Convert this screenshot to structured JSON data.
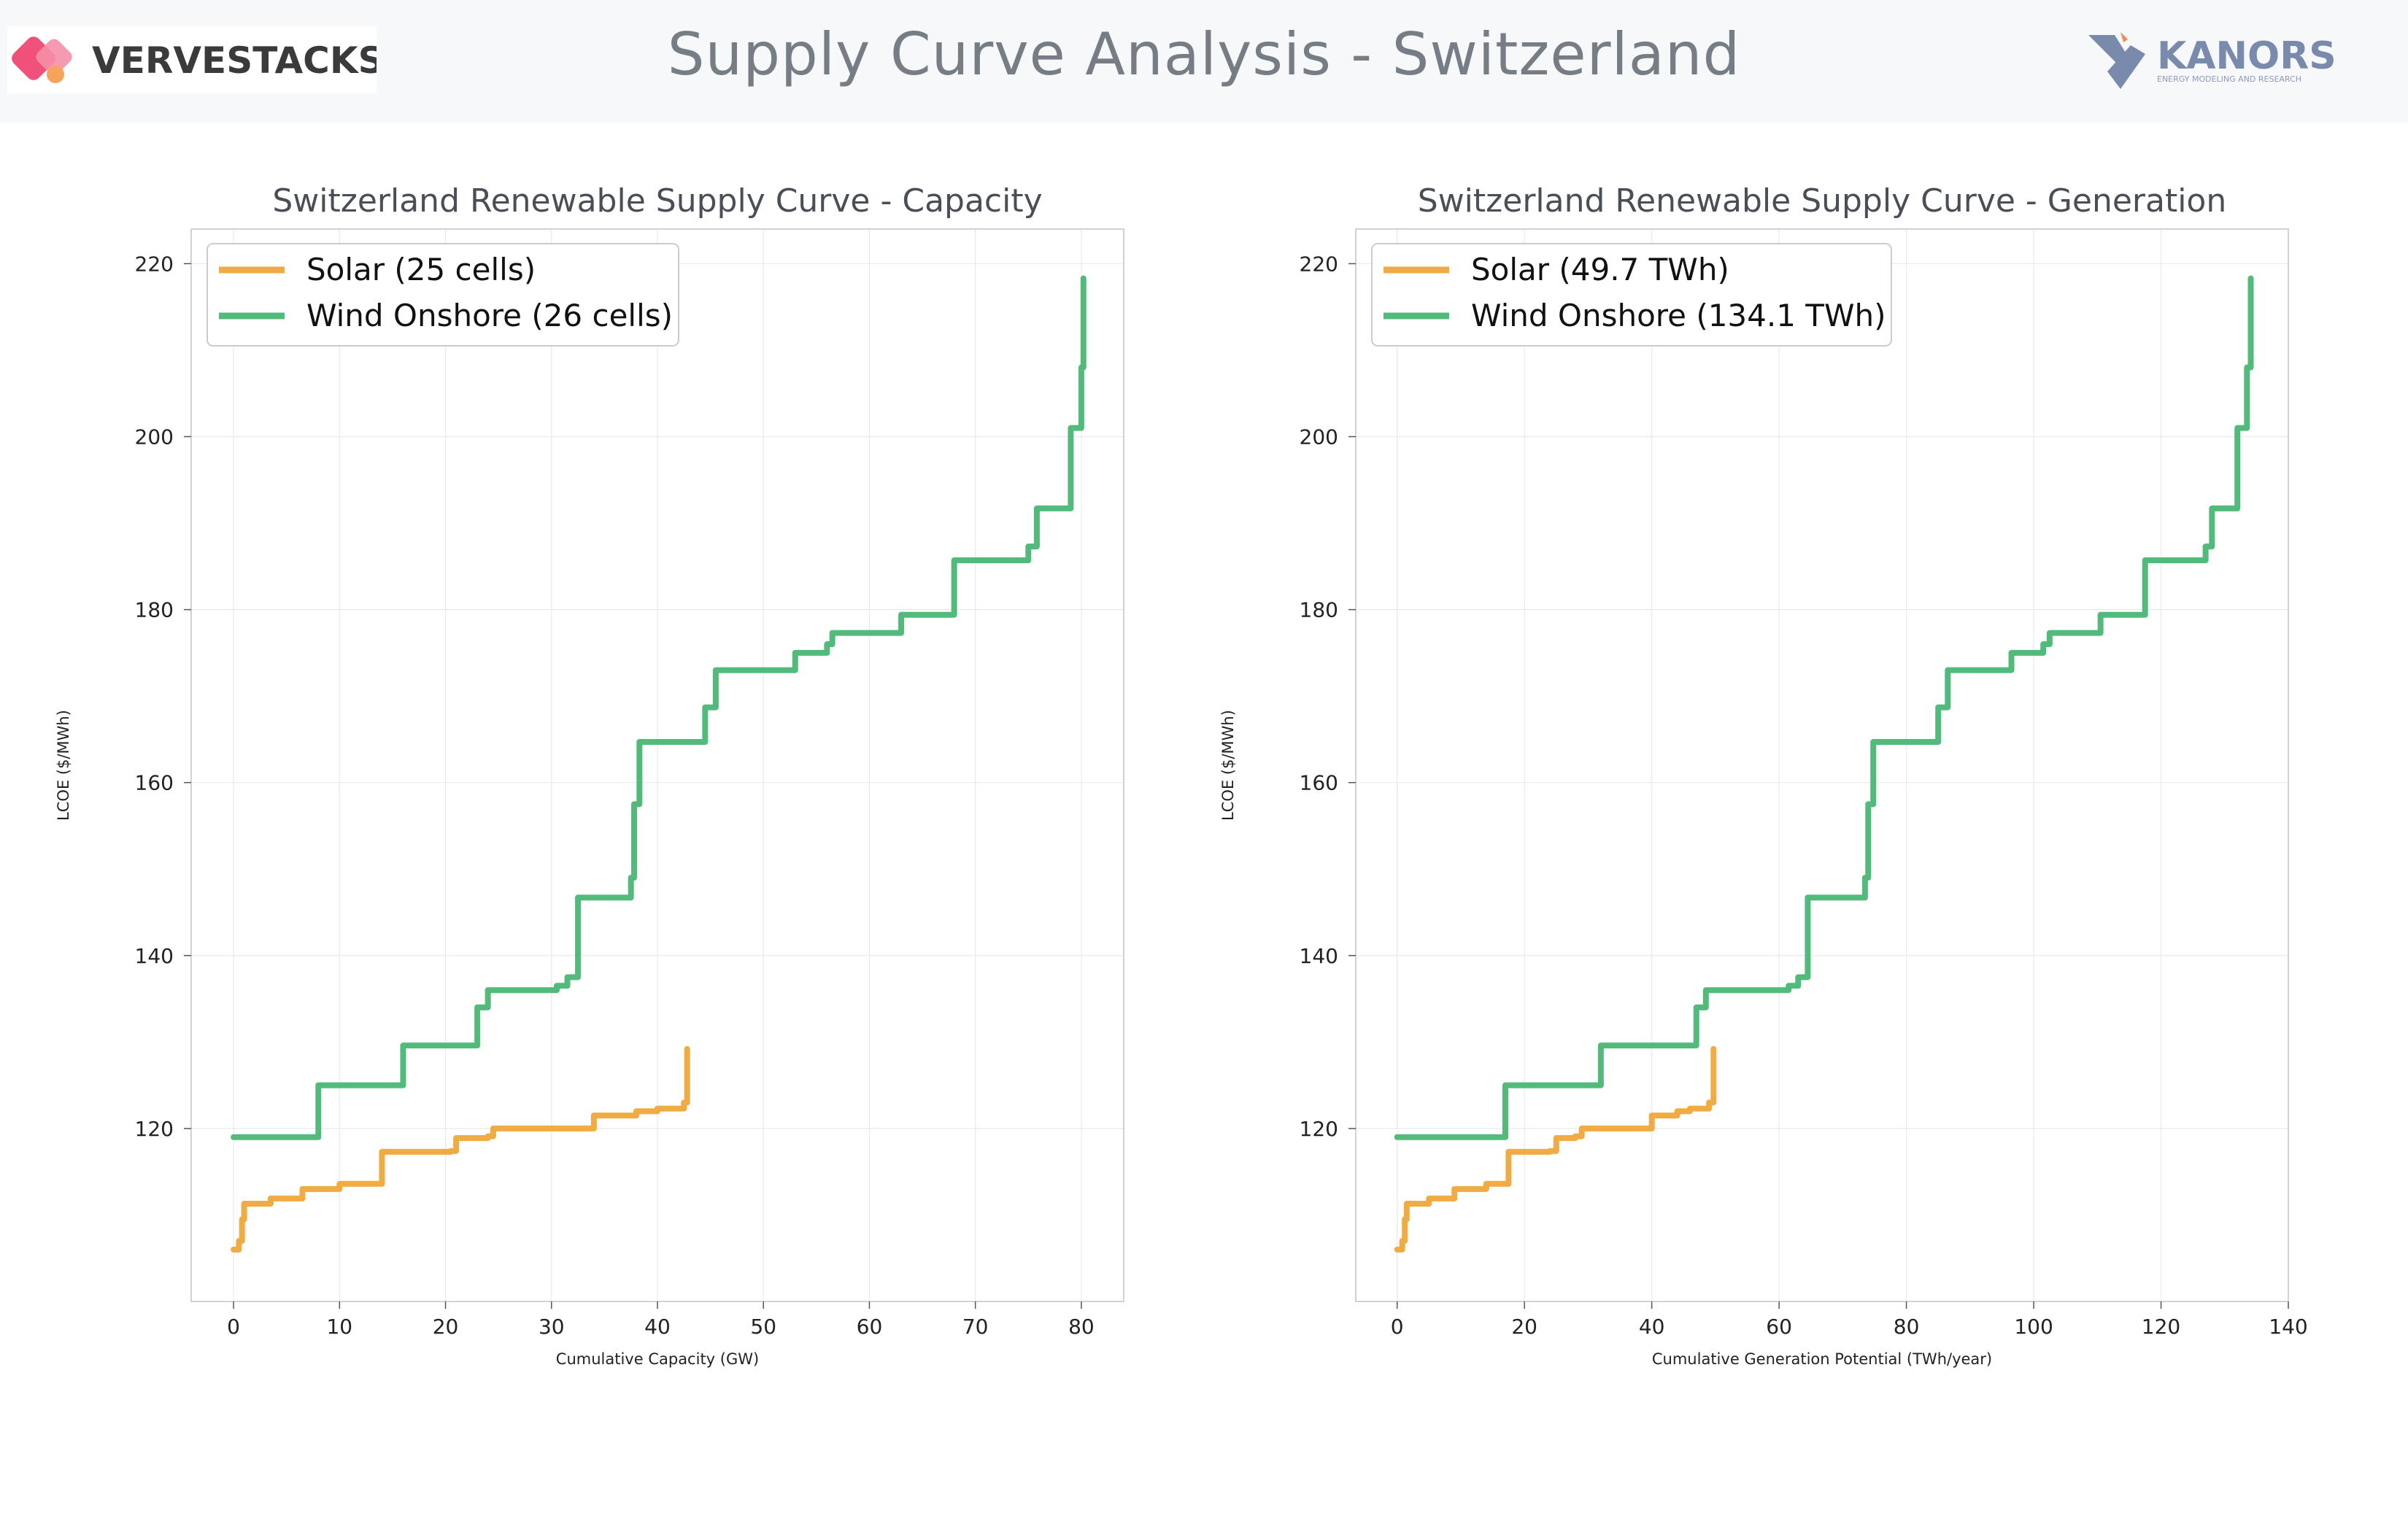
{
  "header": {
    "title": "Supply Curve Analysis - Switzerland",
    "left_logo_text": "VERVESTACKS",
    "right_logo_text": "KANORS",
    "right_logo_tagline": "ENERGY MODELING AND RESEARCH"
  },
  "colors": {
    "solar": "#f0ac42",
    "wind": "#52bb7b",
    "title_text": "#777d85",
    "logo_pink": "#f0517a",
    "logo_blue": "#7a8aad"
  },
  "chart_data": [
    {
      "type": "line",
      "step": true,
      "title": "Switzerland Renewable Supply Curve - Capacity",
      "xlabel": "Cumulative Capacity (GW)",
      "ylabel": "LCOE ($/MWh)",
      "xlim": [
        -4,
        84
      ],
      "ylim": [
        100,
        224
      ],
      "xticks": [
        0,
        10,
        20,
        30,
        40,
        50,
        60,
        70,
        80
      ],
      "yticks": [
        120,
        140,
        160,
        180,
        200,
        220
      ],
      "grid": true,
      "legend_position": "top-left",
      "series": [
        {
          "name": "Solar (25 cells)",
          "color": "#f0ac42",
          "x": [
            0,
            0.5,
            0.8,
            1.0,
            1.5,
            3.5,
            6.5,
            10.0,
            14.0,
            20.5,
            21.0,
            24.0,
            24.5,
            34.0,
            38.0,
            40.0,
            42.5,
            42.8
          ],
          "y": [
            106,
            107,
            109.5,
            111.3,
            111.3,
            111.9,
            113,
            113.6,
            117.3,
            117.4,
            118.9,
            119.1,
            120,
            121.5,
            122,
            122.3,
            123,
            129.2
          ]
        },
        {
          "name": "Wind Onshore (26 cells)",
          "color": "#52bb7b",
          "x": [
            0,
            8,
            16,
            23,
            24,
            30.5,
            31.5,
            32.5,
            37.5,
            37.8,
            38.3,
            44.5,
            45.5,
            53,
            56,
            56.5,
            63,
            68,
            75,
            75.8,
            79,
            80,
            80.2
          ],
          "y": [
            119,
            125,
            129.6,
            134,
            136,
            136.5,
            137.5,
            146.7,
            149,
            157.5,
            164.7,
            168.7,
            173,
            175,
            176,
            177.3,
            179.4,
            185.7,
            187.3,
            191.7,
            201,
            208,
            218.3
          ]
        }
      ]
    },
    {
      "type": "line",
      "step": true,
      "title": "Switzerland Renewable Supply Curve - Generation",
      "xlabel": "Cumulative Generation Potential (TWh/year)",
      "ylabel": "LCOE ($/MWh)",
      "xlim": [
        -6.5,
        140
      ],
      "ylim": [
        100,
        224
      ],
      "xticks": [
        0,
        20,
        40,
        60,
        80,
        100,
        120,
        140
      ],
      "yticks": [
        120,
        140,
        160,
        180,
        200,
        220
      ],
      "grid": true,
      "legend_position": "top-left",
      "series": [
        {
          "name": "Solar (49.7 TWh)",
          "color": "#f0ac42",
          "x": [
            0,
            0.8,
            1.2,
            1.5,
            2.5,
            5,
            9,
            14,
            17.5,
            24,
            25,
            28,
            29,
            40,
            44,
            46,
            49,
            49.7
          ],
          "y": [
            106,
            107,
            109.5,
            111.3,
            111.3,
            111.9,
            113,
            113.6,
            117.3,
            117.4,
            118.9,
            119.1,
            120,
            121.5,
            122,
            122.3,
            123,
            129.2
          ]
        },
        {
          "name": "Wind Onshore (134.1 TWh)",
          "color": "#52bb7b",
          "x": [
            0,
            17,
            32,
            47,
            48.5,
            61.5,
            63,
            64.5,
            73.5,
            74,
            74.8,
            85,
            86.5,
            96.5,
            101.5,
            102.5,
            110.5,
            117.5,
            127,
            128,
            132,
            133.5,
            134.1
          ],
          "y": [
            119,
            125,
            129.6,
            134,
            136,
            136.5,
            137.5,
            146.7,
            149,
            157.5,
            164.7,
            168.7,
            173,
            175,
            176,
            177.3,
            179.4,
            185.7,
            187.3,
            191.7,
            201,
            208,
            218.3
          ]
        }
      ]
    }
  ]
}
